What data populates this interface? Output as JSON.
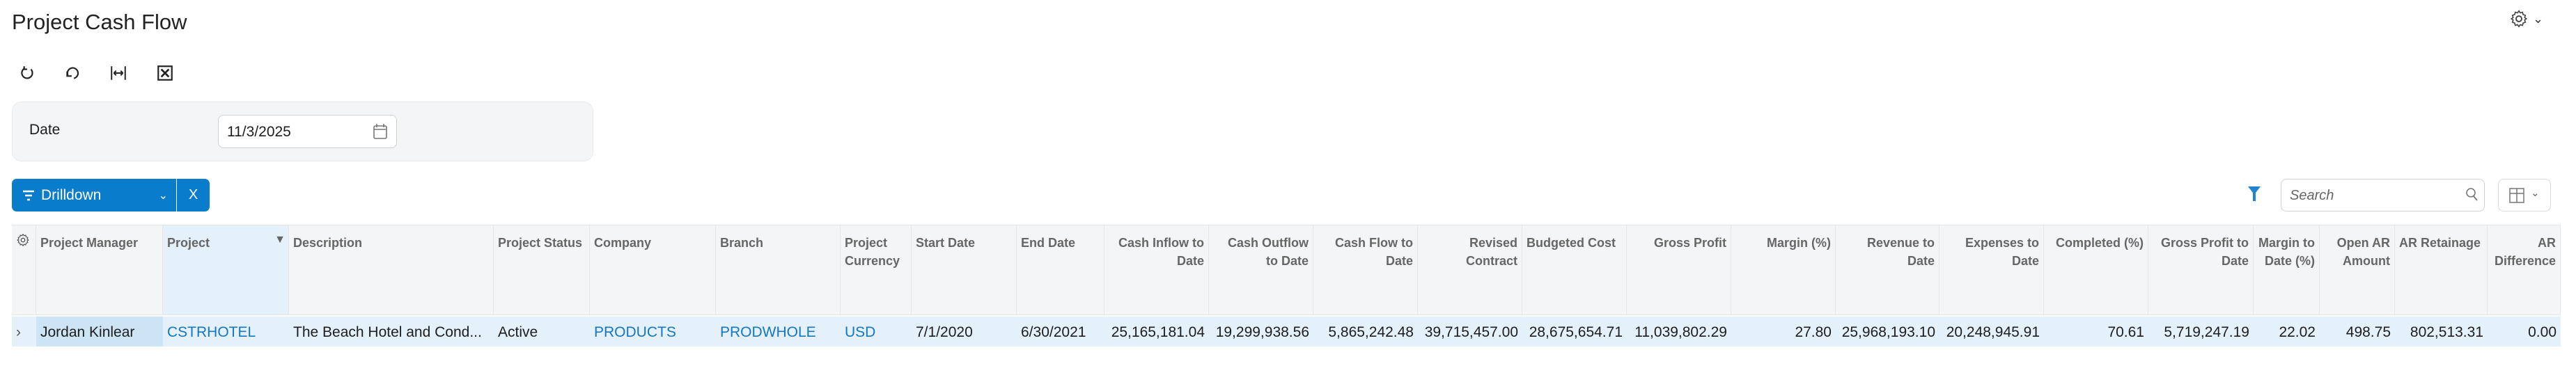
{
  "title": "Project Cash Flow",
  "icons": {
    "settings": "gear-icon",
    "toolbar": [
      "refresh-icon",
      "undo-icon",
      "fit-columns-icon",
      "export-excel-icon"
    ]
  },
  "filter": {
    "date_label": "Date",
    "date_value": "11/3/2025"
  },
  "drilldown": {
    "label": "Drilldown",
    "clear": "X"
  },
  "search": {
    "placeholder": "Search"
  },
  "colors": {
    "accent": "#0a7ccc",
    "link": "#1477c1",
    "row_bg": "#e5f1fa",
    "selected_cell": "#cde4f5"
  },
  "table": {
    "columns": [
      {
        "label": "Project Manager",
        "align": "left"
      },
      {
        "label": "Project",
        "align": "left",
        "filtered": true
      },
      {
        "label": "Description",
        "align": "left"
      },
      {
        "label": "Project Status",
        "align": "left"
      },
      {
        "label": "Company",
        "align": "left"
      },
      {
        "label": "Branch",
        "align": "left"
      },
      {
        "label": "Project Currency",
        "align": "left"
      },
      {
        "label": "Start Date",
        "align": "left"
      },
      {
        "label": "End Date",
        "align": "left"
      },
      {
        "label": "Cash Inflow to Date",
        "align": "right"
      },
      {
        "label": "Cash Outflow to Date",
        "align": "right"
      },
      {
        "label": "Cash Flow to Date",
        "align": "right"
      },
      {
        "label": "Revised Contract",
        "align": "right"
      },
      {
        "label": "Budgeted Cost",
        "align": "left"
      },
      {
        "label": "Gross Profit",
        "align": "right"
      },
      {
        "label": "Margin (%)",
        "align": "right"
      },
      {
        "label": "Revenue to Date",
        "align": "right"
      },
      {
        "label": "Expenses to Date",
        "align": "right"
      },
      {
        "label": "Completed (%)",
        "align": "right"
      },
      {
        "label": "Gross Profit to Date",
        "align": "right"
      },
      {
        "label": "Margin to Date (%)",
        "align": "right"
      },
      {
        "label": "Open AR Amount",
        "align": "right"
      },
      {
        "label": "AR Retainage",
        "align": "left"
      },
      {
        "label": "AR Difference",
        "align": "right"
      }
    ],
    "rows": [
      [
        "Jordan Kinlear",
        "CSTRHOTEL",
        "The Beach Hotel and Cond...",
        "Active",
        "PRODUCTS",
        "PRODWHOLE",
        "USD",
        "7/1/2020",
        "6/30/2021",
        "25,165,181.04",
        "19,299,938.56",
        "5,865,242.48",
        "39,715,457.00",
        "28,675,654.71",
        "11,039,802.29",
        "27.80",
        "25,968,193.10",
        "20,248,945.91",
        "70.61",
        "5,719,247.19",
        "22.02",
        "498.75",
        "802,513.31",
        "0.00"
      ]
    ]
  }
}
